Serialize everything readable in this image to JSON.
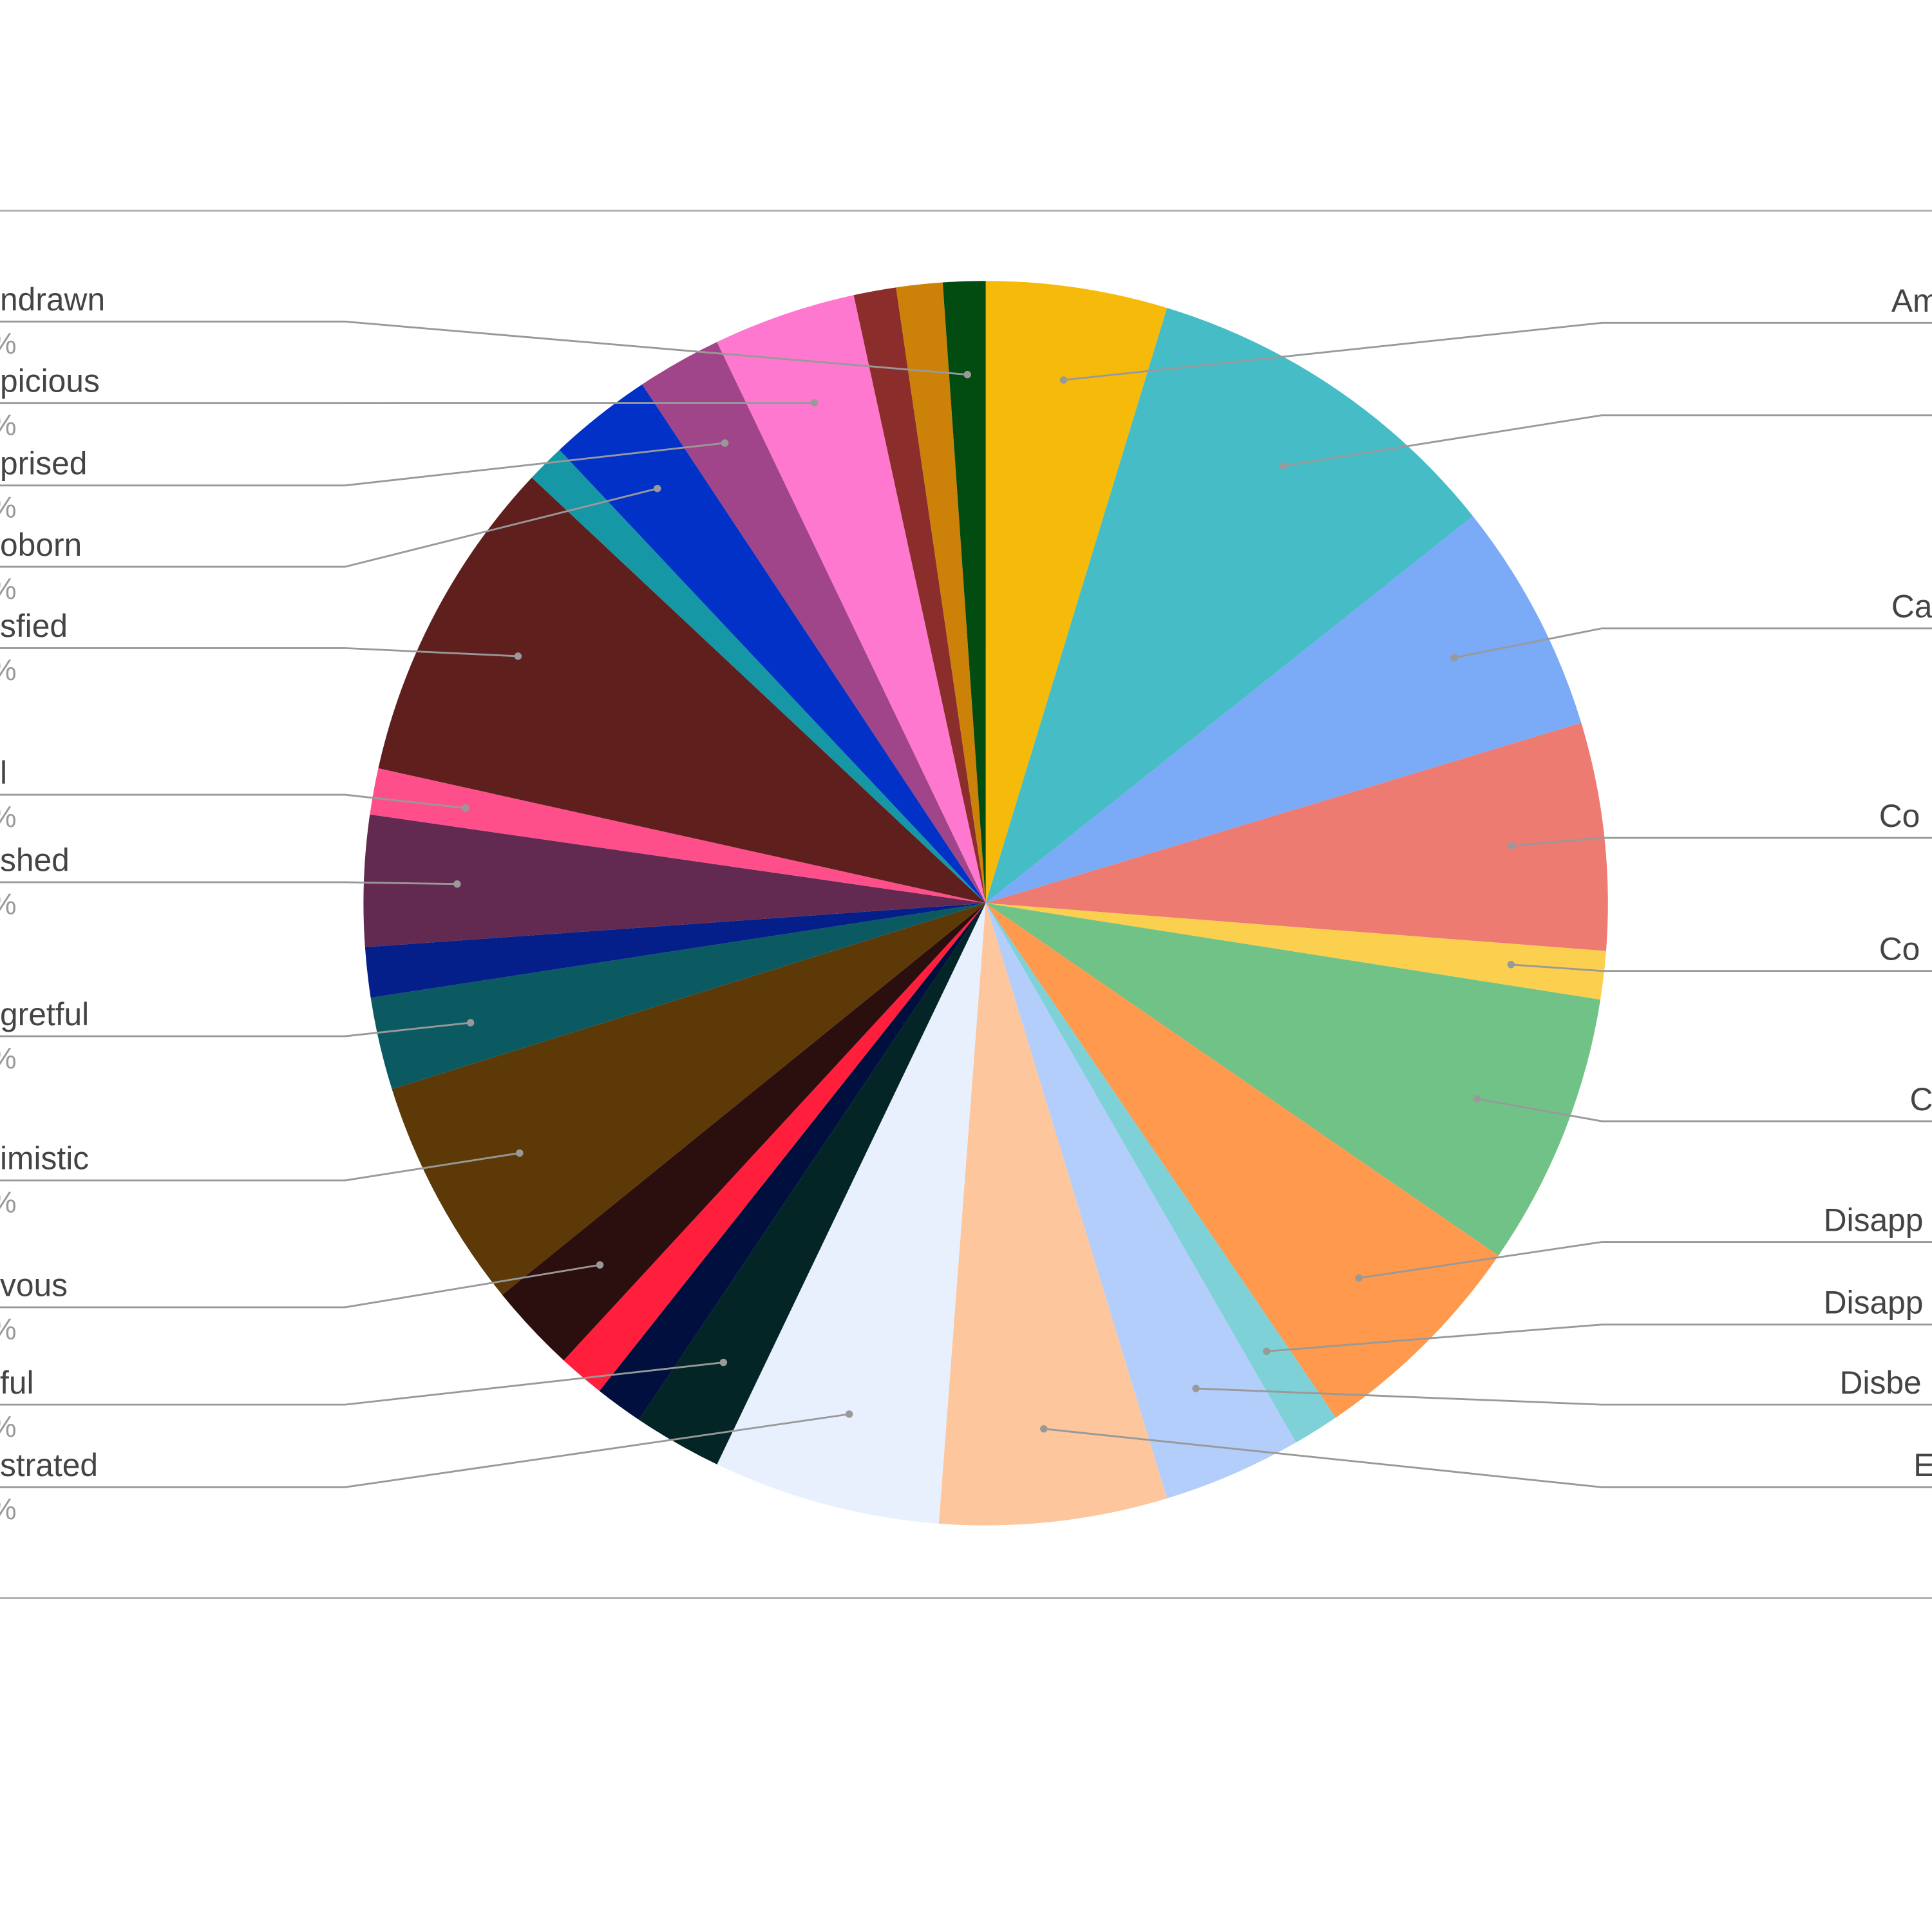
{
  "chart_data": {
    "type": "pie",
    "title": "",
    "legend": "none (leader-line labels, cropped at image edges)",
    "slices": [
      {
        "label": "Am",
        "value": 4.7,
        "color": "#f6bb0a"
      },
      {
        "label": "",
        "value": 9.6,
        "color": "#46bdc6"
      },
      {
        "label": "Ca",
        "value": 6.0,
        "color": "#7baaf7"
      },
      {
        "label": "Co",
        "value": 5.9,
        "color": "#ee7b72"
      },
      {
        "label": "Co",
        "value": 1.25,
        "color": "#fcd04f"
      },
      {
        "label": "C",
        "value": 7.1,
        "color": "#71c287"
      },
      {
        "label": "Disapp",
        "value": 5.9,
        "color": "#ff994d"
      },
      {
        "label": "Disapp",
        "value": 1.2,
        "color": "#7ed1d7"
      },
      {
        "label": "Disbe",
        "value": 3.6,
        "color": "#b3cefb"
      },
      {
        "label": "E",
        "value": 5.9,
        "color": "#fdc69c"
      },
      {
        "label": "strated",
        "value": 5.9,
        "color": "#e8f0fe"
      },
      {
        "label": "ful",
        "value": 2.3,
        "color": "#032525"
      },
      {
        "label": "",
        "value": 1.25,
        "color": "#000f3d"
      },
      {
        "label": "",
        "value": 1.2,
        "color": "#ff1f3d"
      },
      {
        "label": "vous",
        "value": 2.3,
        "color": "#2b0e0e"
      },
      {
        "label": "imistic",
        "value": 6.0,
        "color": "#5c3907"
      },
      {
        "label": "gretful",
        "value": 2.4,
        "color": "#0b5a62"
      },
      {
        "label": "",
        "value": 1.3,
        "color": "#041e8a"
      },
      {
        "label": "shed",
        "value": 3.4,
        "color": "#632a51"
      },
      {
        "label": "l",
        "value": 1.2,
        "color": "#ff4f8b"
      },
      {
        "label": "sfied",
        "value": 8.5,
        "color": "#5e1f1d"
      },
      {
        "label": "",
        "value": 1.0,
        "color": "#1697a6"
      },
      {
        "label": "oborn",
        "value": 2.7,
        "color": "#0231c8"
      },
      {
        "label": "prised",
        "value": 2.2,
        "color": "#a04589"
      },
      {
        "label": "picious",
        "value": 3.7,
        "color": "#ff78cf"
      },
      {
        "label": "",
        "value": 1.1,
        "color": "#8b2e2b"
      },
      {
        "label": "",
        "value": 1.2,
        "color": "#cc8109"
      },
      {
        "label": "ndrawn",
        "value": 1.1,
        "color": "#024c12"
      }
    ],
    "percent_label_fragment": "%"
  }
}
